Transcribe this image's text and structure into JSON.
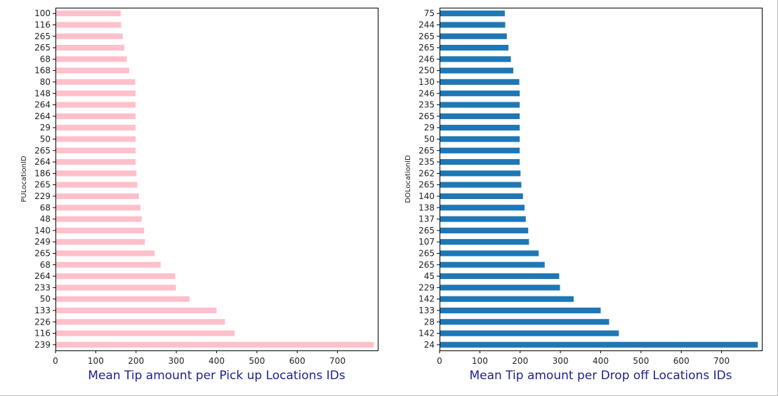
{
  "chart_data": [
    {
      "type": "bar",
      "orientation": "horizontal",
      "ylabel": "PULocationID",
      "xlabel": "Mean Tip amount per Pick up Locations IDs",
      "xlim": [
        0,
        800
      ],
      "xticks": [
        0,
        100,
        200,
        300,
        400,
        500,
        600,
        700
      ],
      "bar_color": "#ffc0cb",
      "xlabel_color": "#1f1f8f",
      "grid": false,
      "categories": [
        "100",
        "116",
        "265",
        "265",
        "68",
        "168",
        "80",
        "148",
        "264",
        "264",
        "29",
        "50",
        "265",
        "264",
        "186",
        "265",
        "229",
        "68",
        "48",
        "140",
        "249",
        "265",
        "68",
        "264",
        "233",
        "50",
        "133",
        "226",
        "116",
        "239"
      ],
      "values": [
        162,
        163,
        167,
        171,
        177,
        183,
        198,
        199,
        199,
        199,
        199,
        199,
        199,
        199,
        201,
        203,
        207,
        211,
        214,
        220,
        222,
        246,
        261,
        297,
        299,
        333,
        400,
        421,
        445,
        790
      ]
    },
    {
      "type": "bar",
      "orientation": "horizontal",
      "ylabel": "DOLocationID",
      "xlabel": "Mean Tip amount per Drop off Locations IDs",
      "xlim": [
        0,
        800
      ],
      "xticks": [
        0,
        100,
        200,
        300,
        400,
        500,
        600,
        700
      ],
      "bar_color": "#1f77b4",
      "xlabel_color": "#1f1f8f",
      "grid": false,
      "categories": [
        "75",
        "244",
        "265",
        "265",
        "246",
        "250",
        "130",
        "246",
        "235",
        "265",
        "29",
        "50",
        "265",
        "235",
        "262",
        "265",
        "140",
        "138",
        "137",
        "265",
        "107",
        "265",
        "265",
        "45",
        "229",
        "142",
        "133",
        "28",
        "142",
        "24"
      ],
      "values": [
        162,
        163,
        167,
        171,
        177,
        183,
        198,
        199,
        199,
        199,
        199,
        199,
        199,
        199,
        201,
        203,
        207,
        211,
        214,
        220,
        222,
        246,
        261,
        297,
        299,
        333,
        400,
        421,
        445,
        790
      ]
    }
  ]
}
